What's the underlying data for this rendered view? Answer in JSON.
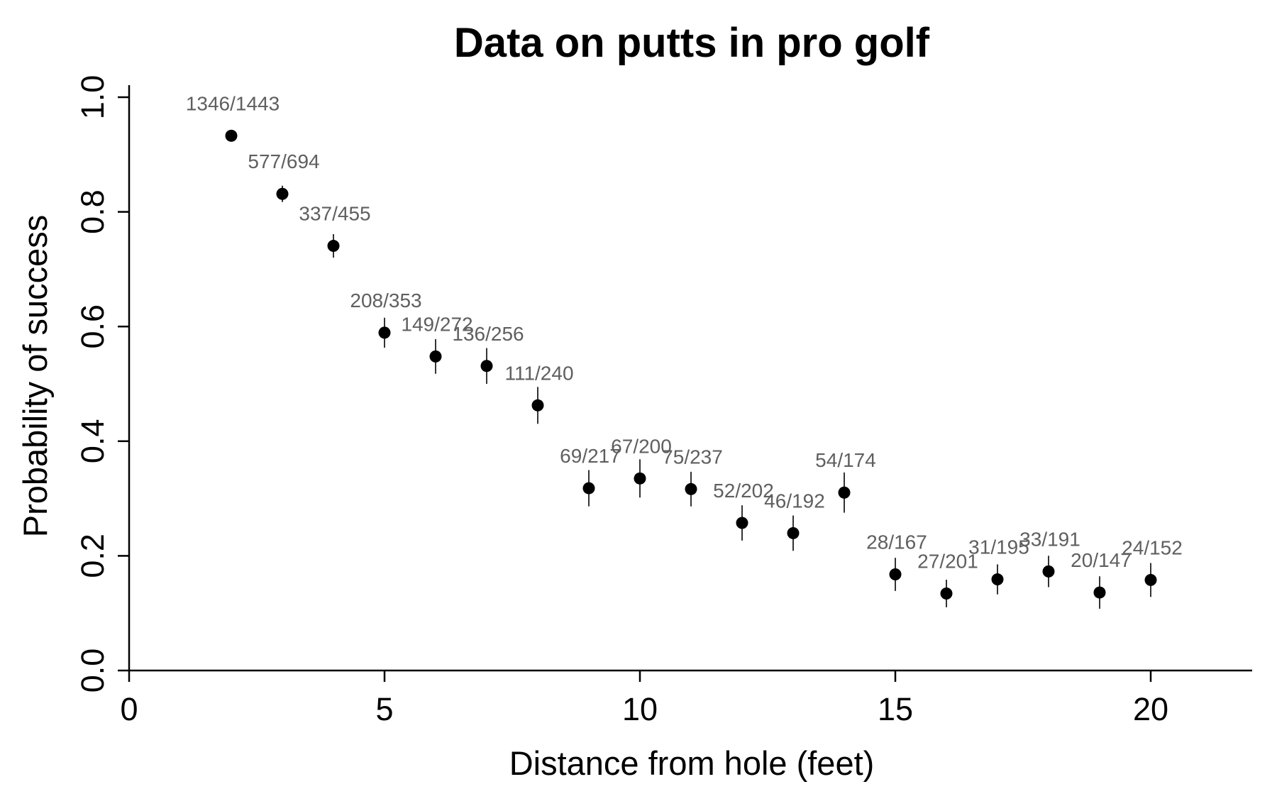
{
  "chart_data": {
    "type": "scatter",
    "title": "Data on putts in pro golf",
    "xlabel": "Distance from hole (feet)",
    "ylabel": "Probability of success",
    "xlim": [
      0,
      22
    ],
    "ylim": [
      0,
      1
    ],
    "x_ticks": [
      0,
      5,
      10,
      15,
      20
    ],
    "y_ticks": [
      0.0,
      0.2,
      0.4,
      0.6,
      0.8,
      1.0
    ],
    "x_tick_labels": [
      "0",
      "5",
      "10",
      "15",
      "20"
    ],
    "y_tick_labels": [
      "0.0",
      "0.2",
      "0.4",
      "0.6",
      "0.8",
      "1.0"
    ],
    "grid": false,
    "points": [
      {
        "x": 2,
        "successes": 1346,
        "attempts": 1443,
        "label": "1346/1443"
      },
      {
        "x": 3,
        "successes": 577,
        "attempts": 694,
        "label": "577/694"
      },
      {
        "x": 4,
        "successes": 337,
        "attempts": 455,
        "label": "337/455"
      },
      {
        "x": 5,
        "successes": 208,
        "attempts": 353,
        "label": "208/353"
      },
      {
        "x": 6,
        "successes": 149,
        "attempts": 272,
        "label": "149/272"
      },
      {
        "x": 7,
        "successes": 136,
        "attempts": 256,
        "label": "136/256"
      },
      {
        "x": 8,
        "successes": 111,
        "attempts": 240,
        "label": "111/240"
      },
      {
        "x": 9,
        "successes": 69,
        "attempts": 217,
        "label": "69/217"
      },
      {
        "x": 10,
        "successes": 67,
        "attempts": 200,
        "label": "67/200"
      },
      {
        "x": 11,
        "successes": 75,
        "attempts": 237,
        "label": "75/237"
      },
      {
        "x": 12,
        "successes": 52,
        "attempts": 202,
        "label": "52/202"
      },
      {
        "x": 13,
        "successes": 46,
        "attempts": 192,
        "label": "46/192"
      },
      {
        "x": 14,
        "successes": 54,
        "attempts": 174,
        "label": "54/174"
      },
      {
        "x": 15,
        "successes": 28,
        "attempts": 167,
        "label": "28/167"
      },
      {
        "x": 16,
        "successes": 27,
        "attempts": 201,
        "label": "27/201"
      },
      {
        "x": 17,
        "successes": 31,
        "attempts": 195,
        "label": "31/195"
      },
      {
        "x": 18,
        "successes": 33,
        "attempts": 191,
        "label": "33/191"
      },
      {
        "x": 19,
        "successes": 20,
        "attempts": 147,
        "label": "20/147"
      },
      {
        "x": 20,
        "successes": 24,
        "attempts": 152,
        "label": "24/152"
      }
    ]
  }
}
